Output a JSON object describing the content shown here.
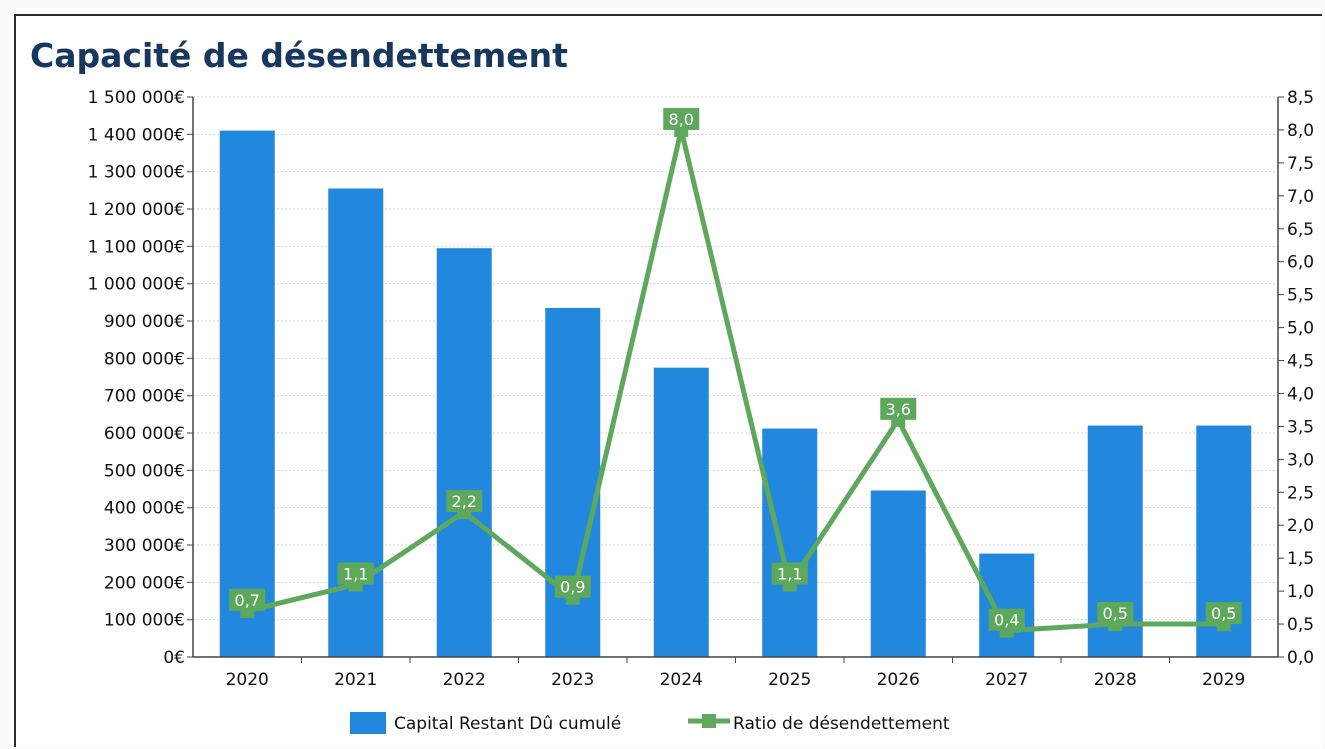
{
  "chart_data": {
    "type": "bar",
    "title": "Capacité de désendettement",
    "categories": [
      "2020",
      "2021",
      "2022",
      "2023",
      "2024",
      "2025",
      "2026",
      "2027",
      "2028",
      "2029"
    ],
    "series": [
      {
        "name": "Capital Restant Dû cumulé",
        "type": "bar",
        "axis": "left",
        "color": "#2288dd",
        "values": [
          1410000,
          1255000,
          1095000,
          935000,
          775000,
          612000,
          446000,
          277000,
          620000,
          620000
        ]
      },
      {
        "name": "Ratio de désendettement",
        "type": "line",
        "axis": "right",
        "color": "#5ea85c",
        "values": [
          0.7,
          1.1,
          2.2,
          0.9,
          8.0,
          1.1,
          3.6,
          0.4,
          0.5,
          0.5
        ],
        "labels": [
          "0,7",
          "1,1",
          "2,2",
          "0,9",
          "8,0",
          "1,1",
          "3,6",
          "0,4",
          "0,5",
          "0,5"
        ]
      }
    ],
    "y_left": {
      "min": 0,
      "max": 1500000,
      "ticks": [
        0,
        100000,
        200000,
        300000,
        400000,
        500000,
        600000,
        700000,
        800000,
        900000,
        1000000,
        1100000,
        1200000,
        1300000,
        1400000,
        1500000
      ],
      "tick_labels": [
        "0€",
        "100 000€",
        "200 000€",
        "300 000€",
        "400 000€",
        "500 000€",
        "600 000€",
        "700 000€",
        "800 000€",
        "900 000€",
        "1 000 000€",
        "1 100 000€",
        "1 200 000€",
        "1 300 000€",
        "1 400 000€",
        "1 500 000€"
      ]
    },
    "y_right": {
      "min": 0,
      "max": 8.5,
      "ticks": [
        0,
        0.5,
        1,
        1.5,
        2,
        2.5,
        3,
        3.5,
        4,
        4.5,
        5,
        5.5,
        6,
        6.5,
        7,
        7.5,
        8,
        8.5
      ],
      "tick_labels": [
        "0,0",
        "0,5",
        "1,0",
        "1,5",
        "2,0",
        "2,5",
        "3,0",
        "3,5",
        "4,0",
        "4,5",
        "5,0",
        "5,5",
        "6,0",
        "6,5",
        "7,0",
        "7,5",
        "8,0",
        "8,5"
      ]
    },
    "grid": true,
    "legend_position": "bottom"
  }
}
